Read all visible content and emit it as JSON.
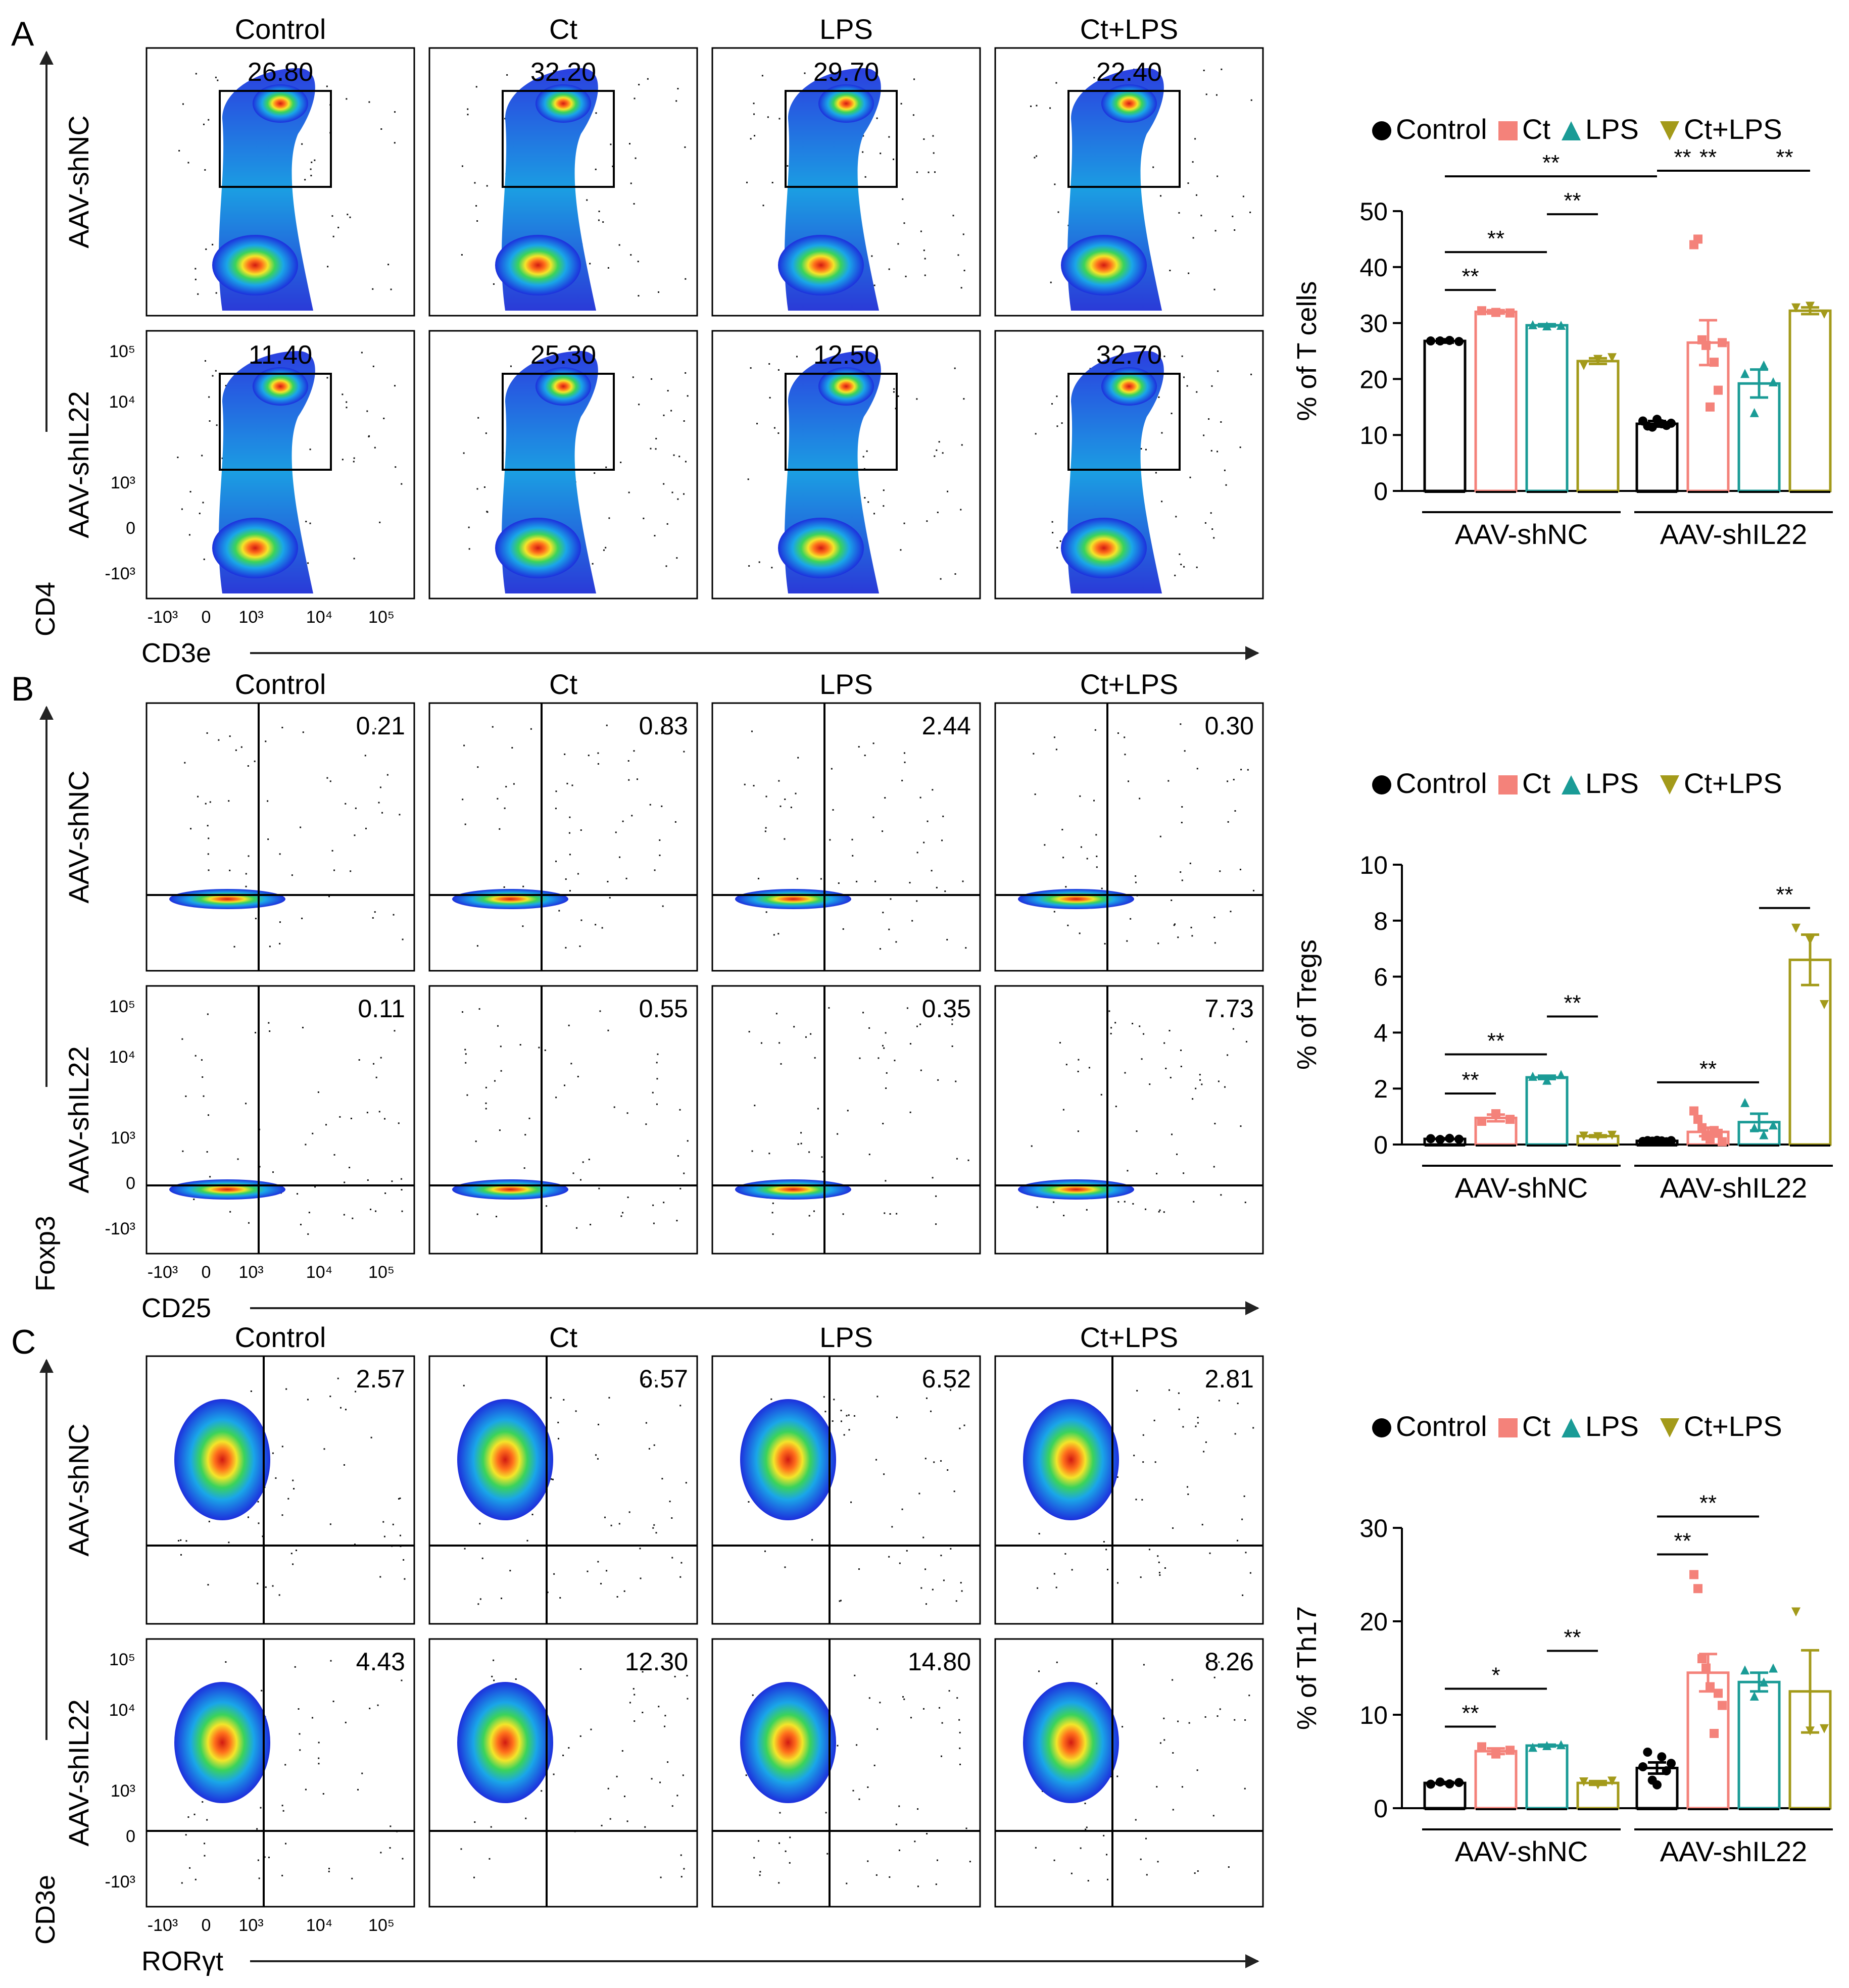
{
  "conditions": [
    "Control",
    "Ct",
    "LPS",
    "Ct+LPS"
  ],
  "row_labels": [
    "AAV-shNC",
    "AAV-shIL22"
  ],
  "colors": {
    "Control": "#000000",
    "Ct": "#f4827a",
    "LPS": "#1a9b96",
    "Ct+LPS": "#a39a1a"
  },
  "tick_labels": {
    "y": [
      "10⁵",
      "10⁴",
      "10³",
      "0",
      "-10³"
    ],
    "x": [
      "-10³",
      "0",
      "10³",
      "10⁴",
      "10⁵"
    ]
  },
  "panels": [
    {
      "letter": "A",
      "x_axis": "CD3e",
      "y_axis": "CD4",
      "gate_type": "box",
      "shape": "blob",
      "gate_values": [
        [
          "26.80",
          "32.20",
          "29.70",
          "22.40"
        ],
        [
          "11.40",
          "25.30",
          "12.50",
          "32.70"
        ]
      ]
    },
    {
      "letter": "B",
      "x_axis": "CD25",
      "y_axis": "Foxp3",
      "gate_type": "quadrant",
      "shape": "flat",
      "gate_values": [
        [
          "0.21",
          "0.83",
          "2.44",
          "0.30"
        ],
        [
          "0.11",
          "0.55",
          "0.35",
          "7.73"
        ]
      ]
    },
    {
      "letter": "C",
      "x_axis": "RORγt",
      "y_axis": "CD3e",
      "gate_type": "quadrant",
      "shape": "round",
      "gate_values": [
        [
          "2.57",
          "6.57",
          "6.52",
          "2.81"
        ],
        [
          "4.43",
          "12.30",
          "14.80",
          "8.26"
        ]
      ]
    }
  ],
  "chart_data": [
    {
      "type": "bar",
      "title": "",
      "ylabel": "% of T cells",
      "xlabel": "",
      "groups": [
        "AAV-shNC",
        "AAV-shIL22"
      ],
      "legend": [
        "Control",
        "Ct",
        "LPS",
        "Ct+LPS"
      ],
      "ylim": [
        0,
        50
      ],
      "yticks": [
        0,
        10,
        20,
        30,
        40,
        50
      ],
      "series": [
        {
          "name": "Control",
          "values": [
            26.8,
            12.0
          ],
          "sem": [
            0.3,
            0.5
          ]
        },
        {
          "name": "Ct",
          "values": [
            32.0,
            26.5
          ],
          "sem": [
            0.3,
            4.0
          ]
        },
        {
          "name": "LPS",
          "values": [
            29.6,
            19.2
          ],
          "sem": [
            0.2,
            2.5
          ]
        },
        {
          "name": "Ct+LPS",
          "values": [
            23.2,
            32.2
          ],
          "sem": [
            0.5,
            0.6
          ]
        }
      ],
      "points": [
        [
          [
            26.8,
            26.8,
            26.9,
            26.7
          ],
          [
            12.5,
            11.6,
            11.4,
            12.8,
            12.0,
            11.7,
            12.1
          ]
        ],
        [
          [
            32.2,
            31.9,
            31.8
          ],
          [
            44.0,
            45.0,
            27.0,
            26.0,
            15.0,
            23.0,
            18.0,
            26.5
          ]
        ],
        [
          [
            29.7,
            29.5,
            29.6
          ],
          [
            21.0,
            14.0,
            22.5,
            19.5
          ]
        ],
        [
          [
            22.4,
            23.5,
            23.8
          ],
          [
            32.7,
            33.0,
            31.6
          ]
        ]
      ],
      "significance": [
        {
          "label": "**",
          "from": [
            0,
            0
          ],
          "to": [
            0,
            1
          ]
        },
        {
          "label": "**",
          "from": [
            0,
            0
          ],
          "to": [
            0,
            2
          ]
        },
        {
          "label": "**",
          "from": [
            0,
            2
          ],
          "to": [
            0,
            3
          ]
        },
        {
          "label": "**",
          "from": [
            0,
            0
          ],
          "to": [
            1,
            0
          ]
        },
        {
          "label": "**",
          "from": [
            1,
            0
          ],
          "to": [
            1,
            1
          ]
        },
        {
          "label": "**",
          "from": [
            1,
            0
          ],
          "to": [
            1,
            2
          ]
        },
        {
          "label": "**",
          "from": [
            1,
            2
          ],
          "to": [
            1,
            3
          ]
        }
      ]
    },
    {
      "type": "bar",
      "title": "",
      "ylabel": "% of Tregs",
      "xlabel": "",
      "groups": [
        "AAV-shNC",
        "AAV-shIL22"
      ],
      "legend": [
        "Control",
        "Ct",
        "LPS",
        "Ct+LPS"
      ],
      "ylim": [
        0,
        10
      ],
      "yticks": [
        0,
        2,
        4,
        6,
        8,
        10
      ],
      "series": [
        {
          "name": "Control",
          "values": [
            0.2,
            0.13
          ],
          "sem": [
            0.02,
            0.02
          ]
        },
        {
          "name": "Ct",
          "values": [
            0.95,
            0.45
          ],
          "sem": [
            0.12,
            0.15
          ]
        },
        {
          "name": "LPS",
          "values": [
            2.4,
            0.8
          ],
          "sem": [
            0.06,
            0.3
          ]
        },
        {
          "name": "Ct+LPS",
          "values": [
            0.3,
            6.6
          ],
          "sem": [
            0.03,
            0.9
          ]
        }
      ],
      "points": [
        [
          [
            0.21,
            0.18,
            0.22,
            0.19
          ],
          [
            0.11,
            0.14,
            0.12,
            0.15,
            0.13,
            0.1,
            0.14
          ]
        ],
        [
          [
            0.83,
            1.1,
            0.9
          ],
          [
            1.2,
            0.9,
            0.6,
            0.3,
            0.2,
            0.5,
            0.4,
            0.1
          ]
        ],
        [
          [
            2.44,
            2.3,
            2.5
          ],
          [
            1.5,
            0.6,
            0.35,
            0.7
          ]
        ],
        [
          [
            0.3,
            0.28,
            0.33
          ],
          [
            7.73,
            7.3,
            5.0
          ]
        ]
      ],
      "significance": [
        {
          "label": "**",
          "from": [
            0,
            0
          ],
          "to": [
            0,
            1
          ]
        },
        {
          "label": "**",
          "from": [
            0,
            0
          ],
          "to": [
            0,
            2
          ]
        },
        {
          "label": "**",
          "from": [
            0,
            2
          ],
          "to": [
            0,
            3
          ]
        },
        {
          "label": "**",
          "from": [
            1,
            0
          ],
          "to": [
            1,
            2
          ]
        },
        {
          "label": "**",
          "from": [
            1,
            2
          ],
          "to": [
            1,
            3
          ]
        }
      ]
    },
    {
      "type": "bar",
      "title": "",
      "ylabel": "% of Th17",
      "xlabel": "",
      "groups": [
        "AAV-shNC",
        "AAV-shIL22"
      ],
      "legend": [
        "Control",
        "Ct",
        "LPS",
        "Ct+LPS"
      ],
      "ylim": [
        0,
        30
      ],
      "yticks": [
        0,
        10,
        20,
        30
      ],
      "series": [
        {
          "name": "Control",
          "values": [
            2.7,
            4.3
          ],
          "sem": [
            0.1,
            0.6
          ]
        },
        {
          "name": "Ct",
          "values": [
            6.1,
            14.5
          ],
          "sem": [
            0.3,
            2.0
          ]
        },
        {
          "name": "LPS",
          "values": [
            6.7,
            13.5
          ],
          "sem": [
            0.1,
            1.0
          ]
        },
        {
          "name": "Ct+LPS",
          "values": [
            2.7,
            12.5
          ],
          "sem": [
            0.2,
            4.4
          ]
        }
      ],
      "points": [
        [
          [
            2.57,
            2.8,
            2.6,
            2.75
          ],
          [
            4.43,
            6.0,
            3.0,
            2.5,
            5.5,
            4.0,
            4.8
          ]
        ],
        [
          [
            6.57,
            5.8,
            6.2
          ],
          [
            25.0,
            23.5,
            16.0,
            15.0,
            13.0,
            8.0,
            12.3,
            11.0
          ]
        ],
        [
          [
            6.52,
            6.7,
            6.8
          ],
          [
            14.8,
            12.0,
            13.5,
            15.0
          ]
        ],
        [
          [
            2.81,
            2.5,
            2.9
          ],
          [
            21.0,
            8.26,
            8.5
          ]
        ]
      ],
      "significance": [
        {
          "label": "**",
          "from": [
            0,
            0
          ],
          "to": [
            0,
            1
          ]
        },
        {
          "label": "*",
          "from": [
            0,
            0
          ],
          "to": [
            0,
            2
          ]
        },
        {
          "label": "**",
          "from": [
            0,
            2
          ],
          "to": [
            0,
            3
          ]
        },
        {
          "label": "**",
          "from": [
            1,
            0
          ],
          "to": [
            1,
            1
          ]
        },
        {
          "label": "**",
          "from": [
            1,
            0
          ],
          "to": [
            1,
            2
          ]
        }
      ]
    }
  ]
}
